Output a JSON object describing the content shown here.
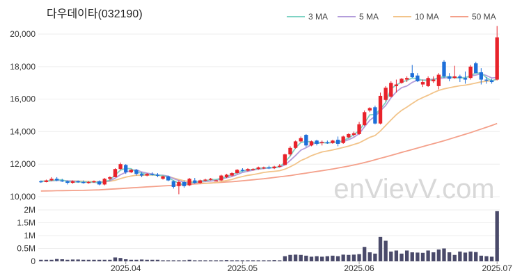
{
  "chart_data": [
    {
      "type": "candlestick",
      "title": "다우데이타(032190)",
      "watermark": "enVievV.com",
      "legend_position": "top-right",
      "legend": [
        {
          "label": "3 MA",
          "color": "#7fd3c4"
        },
        {
          "label": "5 MA",
          "color": "#b39ddb"
        },
        {
          "label": "10 MA",
          "color": "#f2c48a"
        },
        {
          "label": "50 MA",
          "color": "#f4a08a"
        }
      ],
      "y_ticks": [
        "20,000",
        "18,000",
        "16,000",
        "14,000",
        "12,000",
        "10,000"
      ],
      "y_tick_values": [
        20000,
        18000,
        16000,
        14000,
        12000,
        10000
      ],
      "ylim": [
        9700,
        20600
      ],
      "up_color": "#e8232b",
      "down_color": "#1e6fd9",
      "candles": [
        [
          10950,
          11000,
          10850,
          10900
        ],
        [
          10900,
          11050,
          10880,
          11000
        ],
        [
          11000,
          11200,
          10950,
          11100
        ],
        [
          11100,
          11200,
          10950,
          11000
        ],
        [
          11000,
          11100,
          10900,
          10950
        ],
        [
          10950,
          11000,
          10750,
          10850
        ],
        [
          10850,
          11000,
          10800,
          10950
        ],
        [
          10950,
          11000,
          10850,
          10900
        ],
        [
          10900,
          11000,
          10800,
          10850
        ],
        [
          10850,
          10950,
          10800,
          10900
        ],
        [
          10900,
          11000,
          10850,
          10950
        ],
        [
          10950,
          11000,
          10700,
          10750
        ],
        [
          10750,
          11150,
          10700,
          11100
        ],
        [
          11100,
          11250,
          11000,
          11200
        ],
        [
          11200,
          11750,
          11200,
          11700
        ],
        [
          11700,
          12100,
          11650,
          12000
        ],
        [
          11950,
          12000,
          11400,
          11500
        ],
        [
          11500,
          11700,
          11450,
          11650
        ],
        [
          11650,
          11700,
          11300,
          11400
        ],
        [
          11400,
          11500,
          11200,
          11300
        ],
        [
          11300,
          11450,
          11250,
          11400
        ],
        [
          11400,
          11500,
          11300,
          11350
        ],
        [
          11350,
          11450,
          11200,
          11300
        ],
        [
          11100,
          11300,
          11050,
          11250
        ],
        [
          11250,
          11300,
          10950,
          11000
        ],
        [
          10950,
          11000,
          10500,
          10600
        ],
        [
          10650,
          11000,
          10150,
          10900
        ],
        [
          10900,
          11000,
          10550,
          10650
        ],
        [
          10700,
          11150,
          10650,
          11100
        ],
        [
          11000,
          11150,
          10800,
          10850
        ],
        [
          10850,
          11050,
          10800,
          11000
        ],
        [
          11000,
          11100,
          10950,
          11050
        ],
        [
          11050,
          11150,
          11000,
          11100
        ],
        [
          11000,
          11050,
          10950,
          11000
        ],
        [
          11000,
          11350,
          10950,
          11300
        ],
        [
          11200,
          11400,
          11150,
          11350
        ],
        [
          11300,
          11500,
          11250,
          11450
        ],
        [
          11450,
          11700,
          11400,
          11650
        ],
        [
          11650,
          11750,
          11550,
          11600
        ],
        [
          11600,
          11750,
          11550,
          11700
        ],
        [
          11650,
          11750,
          11600,
          11700
        ],
        [
          11700,
          11850,
          11650,
          11800
        ],
        [
          11750,
          11850,
          11700,
          11800
        ],
        [
          11800,
          11900,
          11700,
          11750
        ],
        [
          11750,
          11900,
          11700,
          11850
        ],
        [
          11850,
          12000,
          11800,
          11900
        ],
        [
          11950,
          12650,
          11950,
          12600
        ],
        [
          12600,
          13100,
          12500,
          13000
        ],
        [
          13000,
          13450,
          12950,
          13400
        ],
        [
          13400,
          13700,
          13350,
          13600
        ],
        [
          13800,
          13850,
          13050,
          13150
        ],
        [
          13150,
          13450,
          13100,
          13400
        ],
        [
          13450,
          13500,
          13150,
          13250
        ],
        [
          13300,
          13450,
          13150,
          13350
        ],
        [
          13350,
          13450,
          13250,
          13300
        ],
        [
          13300,
          13500,
          13250,
          13450
        ],
        [
          13500,
          13700,
          13100,
          13250
        ],
        [
          13300,
          13750,
          13250,
          13700
        ],
        [
          13650,
          13900,
          13600,
          13850
        ],
        [
          13800,
          14000,
          13700,
          13900
        ],
        [
          13850,
          14600,
          13800,
          14450
        ],
        [
          14400,
          15300,
          14350,
          15200
        ],
        [
          15300,
          15500,
          15200,
          15450
        ],
        [
          15500,
          15600,
          14450,
          14500
        ],
        [
          14500,
          16400,
          14450,
          16200
        ],
        [
          15950,
          16800,
          15850,
          16700
        ],
        [
          16150,
          17100,
          16100,
          17000
        ],
        [
          16800,
          17200,
          16400,
          16900
        ],
        [
          17000,
          17300,
          16950,
          17250
        ],
        [
          17200,
          17400,
          17050,
          17300
        ],
        [
          17600,
          18100,
          17300,
          17350
        ],
        [
          17450,
          17600,
          17050,
          17100
        ],
        [
          16900,
          17200,
          16750,
          17050
        ],
        [
          16800,
          17400,
          16750,
          17300
        ],
        [
          17100,
          17400,
          17000,
          17200
        ],
        [
          16800,
          17600,
          16600,
          17500
        ],
        [
          18300,
          18400,
          17300,
          17400
        ],
        [
          17400,
          17600,
          17100,
          17250
        ],
        [
          17300,
          18050,
          17250,
          17400
        ],
        [
          17400,
          17500,
          17050,
          17300
        ],
        [
          17300,
          17700,
          16950,
          17200
        ],
        [
          17300,
          18100,
          17200,
          18000
        ],
        [
          18200,
          18300,
          17600,
          17600
        ],
        [
          17650,
          17900,
          16900,
          17200
        ],
        [
          17200,
          17350,
          16950,
          17150
        ],
        [
          17150,
          17250,
          16950,
          17050
        ],
        [
          17200,
          20500,
          17150,
          19800
        ]
      ],
      "ma3": [
        10950,
        10960,
        10990,
        11033,
        11033,
        10933,
        10900,
        10900,
        10900,
        10883,
        10900,
        10833,
        10933,
        11017,
        11333,
        11633,
        11733,
        11717,
        11517,
        11450,
        11350,
        11350,
        11317,
        11300,
        11183,
        10983,
        10833,
        10717,
        10883,
        10867,
        10983,
        10967,
        11050,
        11050,
        11133,
        11217,
        11367,
        11467,
        11567,
        11650,
        11667,
        11733,
        11767,
        11783,
        11800,
        11833,
        12117,
        12500,
        13000,
        13333,
        13383,
        13383,
        13267,
        13333,
        13300,
        13367,
        13333,
        13467,
        13600,
        13817,
        14067,
        14517,
        15033,
        15050,
        15383,
        15800,
        16633,
        16867,
        17050,
        17150,
        17300,
        17250,
        17150,
        17150,
        17183,
        17333,
        17367,
        17383,
        17317,
        17317,
        17300,
        17467,
        17600,
        17600,
        17317,
        17133,
        17233
      ],
      "ma5": [
        10950,
        10955,
        10980,
        11000,
        11000,
        10970,
        10960,
        10930,
        10910,
        10890,
        10890,
        10870,
        10910,
        10980,
        11140,
        11350,
        11500,
        11620,
        11650,
        11520,
        11450,
        11400,
        11330,
        11320,
        11260,
        11110,
        10990,
        10870,
        10870,
        10850,
        10930,
        10930,
        10960,
        11000,
        11090,
        11160,
        11240,
        11360,
        11490,
        11560,
        11630,
        11690,
        11730,
        11770,
        11780,
        11820,
        11950,
        12230,
        12530,
        12860,
        13010,
        13200,
        13330,
        13350,
        13300,
        13330,
        13370,
        13390,
        13500,
        13650,
        13880,
        14300,
        14700,
        14940,
        15280,
        15610,
        16080,
        16450,
        16700,
        16810,
        17030,
        17170,
        17170,
        17180,
        17230,
        17270,
        17300,
        17330,
        17320,
        17310,
        17330,
        17420,
        17480,
        17560,
        17450,
        17300,
        17330
      ],
      "ma10": [
        10950,
        10955,
        10980,
        11000,
        11000,
        10980,
        10970,
        10960,
        10950,
        10940,
        10930,
        10910,
        10920,
        10950,
        11010,
        11110,
        11200,
        11270,
        11320,
        11310,
        11330,
        11330,
        11310,
        11290,
        11240,
        11150,
        11060,
        10980,
        10940,
        10890,
        10860,
        10820,
        10830,
        10870,
        10930,
        10990,
        11060,
        11160,
        11240,
        11310,
        11360,
        11420,
        11490,
        11530,
        11560,
        11600,
        11690,
        11840,
        12010,
        12220,
        12360,
        12520,
        12640,
        12750,
        12810,
        12870,
        12950,
        13030,
        13110,
        13210,
        13310,
        13480,
        13650,
        13760,
        14040,
        14380,
        14720,
        15040,
        15310,
        15510,
        15730,
        15940,
        16100,
        16240,
        16400,
        16540,
        16630,
        16700,
        16760,
        16820,
        16860,
        16920,
        16990,
        17060,
        17100,
        17130,
        17220
      ],
      "ma50": [
        10350,
        10355,
        10360,
        10365,
        10370,
        10375,
        10380,
        10385,
        10390,
        10400,
        10410,
        10420,
        10440,
        10460,
        10480,
        10500,
        10520,
        10540,
        10560,
        10580,
        10600,
        10620,
        10640,
        10660,
        10680,
        10700,
        10720,
        10740,
        10760,
        10780,
        10800,
        10820,
        10840,
        10860,
        10880,
        10900,
        10920,
        10950,
        10980,
        11010,
        11040,
        11070,
        11100,
        11140,
        11180,
        11220,
        11260,
        11300,
        11350,
        11400,
        11450,
        11500,
        11550,
        11600,
        11650,
        11700,
        11760,
        11820,
        11880,
        11950,
        12020,
        12100,
        12180,
        12270,
        12360,
        12450,
        12540,
        12630,
        12720,
        12810,
        12900,
        12990,
        13080,
        13170,
        13260,
        13350,
        13440,
        13540,
        13640,
        13740,
        13840,
        13940,
        14050,
        14160,
        14270,
        14380,
        14500
      ],
      "volume_ticks": [
        "2M",
        "1.5M",
        "1M",
        "0.5M",
        "0"
      ],
      "volume_tick_values": [
        2000000,
        1500000,
        1000000,
        500000,
        0
      ],
      "volume_max": 2000000,
      "volume_color": "#4a4a6a",
      "volume": [
        60000,
        60000,
        60000,
        90000,
        80000,
        60000,
        70000,
        70000,
        60000,
        60000,
        60000,
        60000,
        60000,
        60000,
        150000,
        130000,
        80000,
        60000,
        60000,
        70000,
        60000,
        60000,
        60000,
        40000,
        40000,
        40000,
        40000,
        40000,
        60000,
        40000,
        40000,
        40000,
        40000,
        40000,
        40000,
        50000,
        40000,
        40000,
        40000,
        40000,
        40000,
        40000,
        40000,
        40000,
        50000,
        40000,
        200000,
        250000,
        260000,
        250000,
        220000,
        180000,
        200000,
        180000,
        200000,
        220000,
        200000,
        260000,
        250000,
        260000,
        280000,
        560000,
        350000,
        300000,
        950000,
        800000,
        380000,
        420000,
        300000,
        420000,
        350000,
        340000,
        330000,
        420000,
        350000,
        460000,
        500000,
        350000,
        250000,
        380000,
        340000,
        380000,
        360000,
        220000,
        200000,
        180000,
        1950000
      ],
      "x_ticks": [
        {
          "label": "2025.04",
          "index": 16.5
        },
        {
          "label": "2025.05",
          "index": 38.5
        },
        {
          "label": "2025.06",
          "index": 60.5
        },
        {
          "label": "2025.07",
          "index": 86.5
        }
      ]
    }
  ]
}
